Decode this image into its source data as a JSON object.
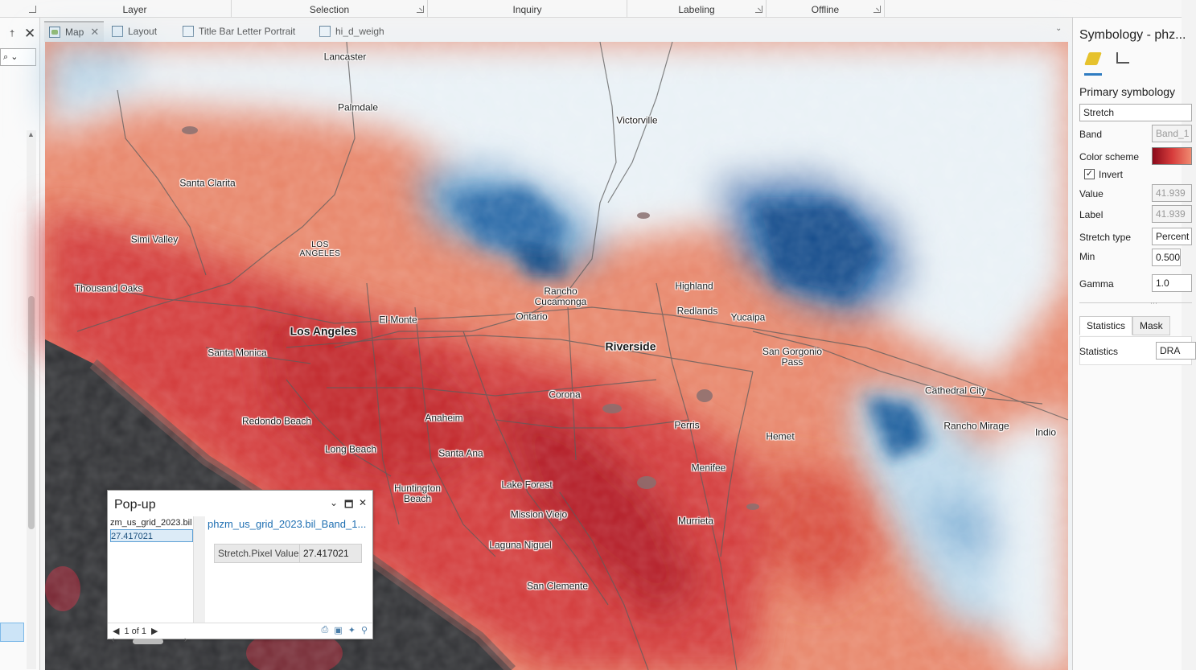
{
  "ribbon": {
    "groups": [
      {
        "label": "Layer"
      },
      {
        "label": "Selection"
      },
      {
        "label": "Inquiry"
      },
      {
        "label": "Labeling"
      },
      {
        "label": "Offline"
      }
    ]
  },
  "left_pane": {
    "pin_glyph": "†",
    "close_glyph": "✕",
    "search_glyph": "⌕ ⌄"
  },
  "tabs": [
    {
      "label": "Map",
      "icon": "map-icon",
      "active": true,
      "closable": true
    },
    {
      "label": "Layout",
      "icon": "layout-icon"
    },
    {
      "label": "Title Bar Letter Portrait",
      "icon": "layout-icon"
    },
    {
      "label": "hi_d_weigh",
      "icon": "table-icon"
    }
  ],
  "map": {
    "cities": [
      {
        "name": "Lancaster"
      },
      {
        "name": "Palmdale"
      },
      {
        "name": "Victorville"
      },
      {
        "name": "Santa Clarita"
      },
      {
        "name": "Simi Valley"
      },
      {
        "name": "LOS ANGELES"
      },
      {
        "name": "Thousand Oaks"
      },
      {
        "name": "Rancho Cucamonga"
      },
      {
        "name": "Highland"
      },
      {
        "name": "Redlands"
      },
      {
        "name": "Yucaipa"
      },
      {
        "name": "Ontario"
      },
      {
        "name": "El Monte"
      },
      {
        "name": "Los Angeles"
      },
      {
        "name": "Santa Monica"
      },
      {
        "name": "Riverside"
      },
      {
        "name": "San Gorgonio Pass"
      },
      {
        "name": "Cathedral City"
      },
      {
        "name": "Rancho Mirage"
      },
      {
        "name": "Indio"
      },
      {
        "name": "Corona"
      },
      {
        "name": "Redondo Beach"
      },
      {
        "name": "Anaheim"
      },
      {
        "name": "Perris"
      },
      {
        "name": "Hemet"
      },
      {
        "name": "Long Beach"
      },
      {
        "name": "Santa Ana"
      },
      {
        "name": "Menifee"
      },
      {
        "name": "Huntington Beach"
      },
      {
        "name": "Lake Forest"
      },
      {
        "name": "Mission Viejo"
      },
      {
        "name": "Murrieta"
      },
      {
        "name": "Laguna Niguel"
      },
      {
        "name": "San Clemente"
      }
    ],
    "colors": {
      "hot": "#b2182b",
      "warm": "#ef8a62",
      "cool": "#d1e5f0",
      "cold": "#2166ac",
      "ocean": "#2f3033"
    }
  },
  "popup": {
    "title": "Pop-up",
    "list_items": [
      "zm_us_grid_2023.bil",
      "27.417021"
    ],
    "feature_title": "phzm_us_grid_2023.bil_Band_1...",
    "field_name": "Stretch.Pixel Value",
    "field_value": "27.417021",
    "nav": "1 of 1"
  },
  "symbology": {
    "title": "Symbology - phz...",
    "section": "Primary symbology",
    "renderer": "Stretch",
    "band_label": "Band",
    "band_value": "Band_1",
    "color_scheme_label": "Color scheme",
    "invert_label": "Invert",
    "invert_checked": true,
    "value_label": "Value",
    "value_value": "41.939",
    "label_label": "Label",
    "label_value": "41.939",
    "stretch_type_label": "Stretch type",
    "stretch_type_value": "Percent",
    "min_label": "Min",
    "min_value": "0.500",
    "gamma_label": "Gamma",
    "gamma_value": "1.0",
    "tabs": [
      "Statistics",
      "Mask"
    ],
    "statistics_label": "Statistics",
    "statistics_value": "DRA"
  }
}
